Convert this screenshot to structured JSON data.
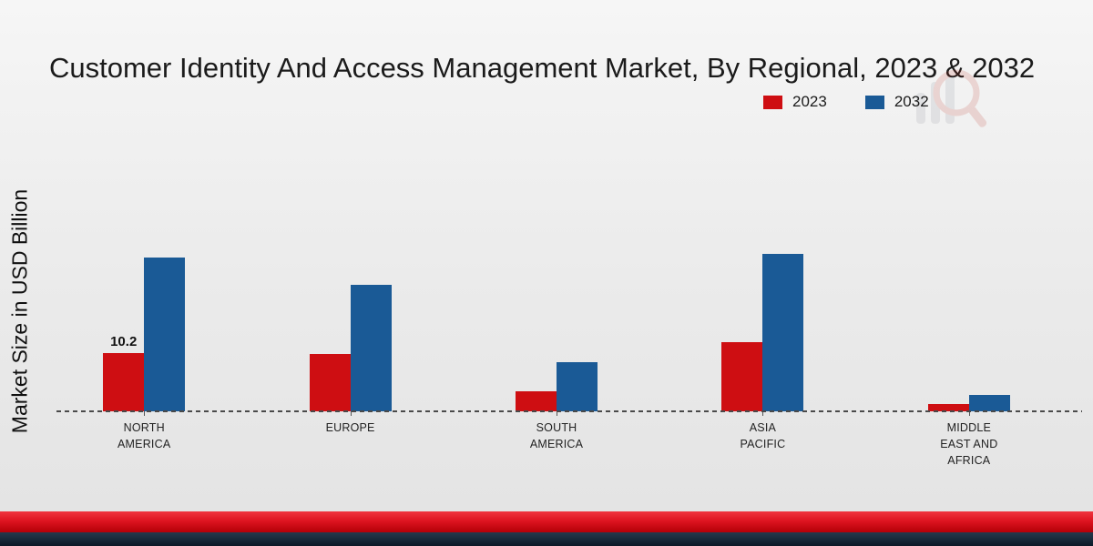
{
  "title": "Customer Identity And Access Management Market, By Regional, 2023 & 2032",
  "ylabel": "Market Size in USD Billion",
  "legend": [
    {
      "label": "2023",
      "color": "#ce0e12"
    },
    {
      "label": "2032",
      "color": "#1a5a96"
    }
  ],
  "chart_data": {
    "type": "bar",
    "title": "Customer Identity And Access Management Market, By Regional, 2023 & 2032",
    "ylabel": "Market Size in USD Billion",
    "categories": [
      "NORTH AMERICA",
      "EUROPE",
      "SOUTH AMERICA",
      "ASIA PACIFIC",
      "MIDDLE EAST AND AFRICA"
    ],
    "series": [
      {
        "name": "2023",
        "color": "#ce0e12",
        "values": [
          10.2,
          10.0,
          3.5,
          12.0,
          1.3
        ]
      },
      {
        "name": "2032",
        "color": "#1a5a96",
        "values": [
          26.8,
          22.0,
          8.5,
          27.5,
          2.9
        ]
      }
    ],
    "annotations": [
      {
        "text": "10.2",
        "category": "NORTH AMERICA",
        "series": "2023"
      }
    ],
    "ylim": [
      0,
      30
    ],
    "grid": false,
    "legend_position": "top-right",
    "baseline_style": "dashed"
  },
  "colors": {
    "bar_2023": "#ce0e12",
    "bar_2032": "#1a5a96",
    "footer_red": "#de1420",
    "footer_dark": "#0c1a28"
  }
}
